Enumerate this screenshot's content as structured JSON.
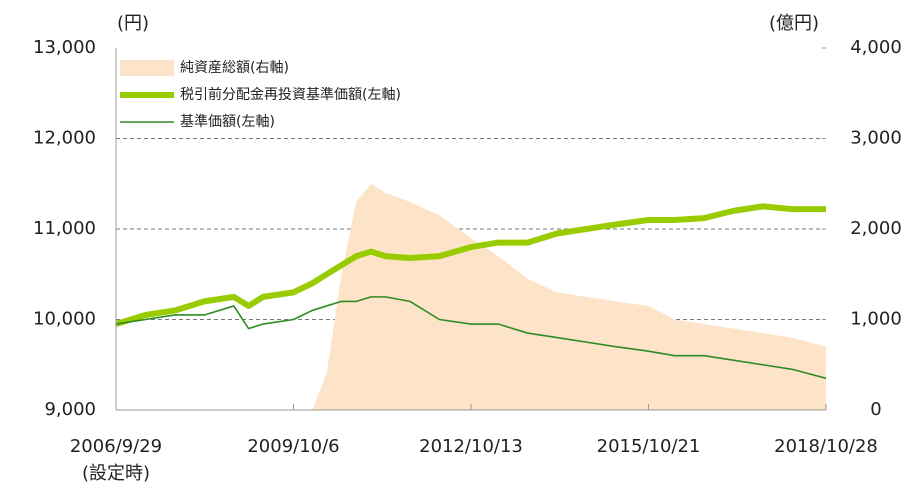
{
  "chart_data": {
    "type": "line",
    "y_unit": "(円)",
    "y2_unit": "(億円)",
    "x": [
      "2006/9/29",
      "2007/3/31",
      "2007/9/30",
      "2008/3/31",
      "2008/9/30",
      "2008/12/31",
      "2009/3/31",
      "2009/10/6",
      "2010/1/31",
      "2010/4/30",
      "2010/7/31",
      "2010/10/31",
      "2011/1/31",
      "2011/4/30",
      "2011/9/30",
      "2012/3/31",
      "2012/10/13",
      "2013/3/31",
      "2013/9/30",
      "2014/3/31",
      "2014/9/30",
      "2015/3/31",
      "2015/10/21",
      "2016/3/31",
      "2016/9/30",
      "2017/3/31",
      "2017/9/30",
      "2018/3/31",
      "2018/10/28"
    ],
    "xlim": [
      "2006/9/29",
      "2018/10/28"
    ],
    "xticks": [
      "2006/9/29",
      "2009/10/6",
      "2012/10/13",
      "2015/10/21",
      "2018/10/28"
    ],
    "x_tick_note": "(設定時)",
    "ylim": [
      9000,
      13000
    ],
    "yticks": [
      {
        "value": 9000,
        "label": "9,000"
      },
      {
        "value": 10000,
        "label": "10,000"
      },
      {
        "value": 11000,
        "label": "11,000"
      },
      {
        "value": 12000,
        "label": "12,000"
      },
      {
        "value": 13000,
        "label": "13,000"
      }
    ],
    "y2lim": [
      0,
      4000
    ],
    "y2ticks": [
      0,
      {
        "value": 1000,
        "label": "1,000"
      },
      {
        "value": 2000,
        "label": "2,000"
      },
      {
        "value": 3000,
        "label": "3,000"
      },
      {
        "value": 4000,
        "label": "4,000"
      }
    ],
    "grid": true,
    "legend": "top-left",
    "series": [
      {
        "name": "純資産総額(右軸)",
        "kind": "area",
        "axis": "y2",
        "color": "#fde4c8",
        "values": [
          0,
          0,
          0,
          0,
          0,
          0,
          0,
          0,
          0,
          400,
          1500,
          2300,
          2500,
          2400,
          2300,
          2150,
          1900,
          1700,
          1450,
          1300,
          1250,
          1200,
          1150,
          1000,
          950,
          900,
          850,
          800,
          700
        ]
      },
      {
        "name": "税引前分配金再投資基準価額(左軸)",
        "kind": "line",
        "color": "#99cc00",
        "line_width": 6,
        "values": [
          9950,
          10050,
          10100,
          10200,
          10250,
          10150,
          10250,
          10300,
          10400,
          10500,
          10600,
          10700,
          10750,
          10700,
          10680,
          10700,
          10800,
          10850,
          10850,
          10950,
          11000,
          11050,
          11100,
          11100,
          11120,
          11200,
          11250,
          11220,
          11220
        ]
      },
      {
        "name": "基準価額(左軸)",
        "kind": "line",
        "color": "#2e8b22",
        "line_width": 1.6,
        "values": [
          9950,
          10000,
          10050,
          10050,
          10150,
          9900,
          9950,
          10000,
          10100,
          10150,
          10200,
          10200,
          10250,
          10250,
          10200,
          10000,
          9950,
          9950,
          9850,
          9800,
          9750,
          9700,
          9650,
          9600,
          9600,
          9550,
          9500,
          9450,
          9350
        ]
      }
    ]
  }
}
